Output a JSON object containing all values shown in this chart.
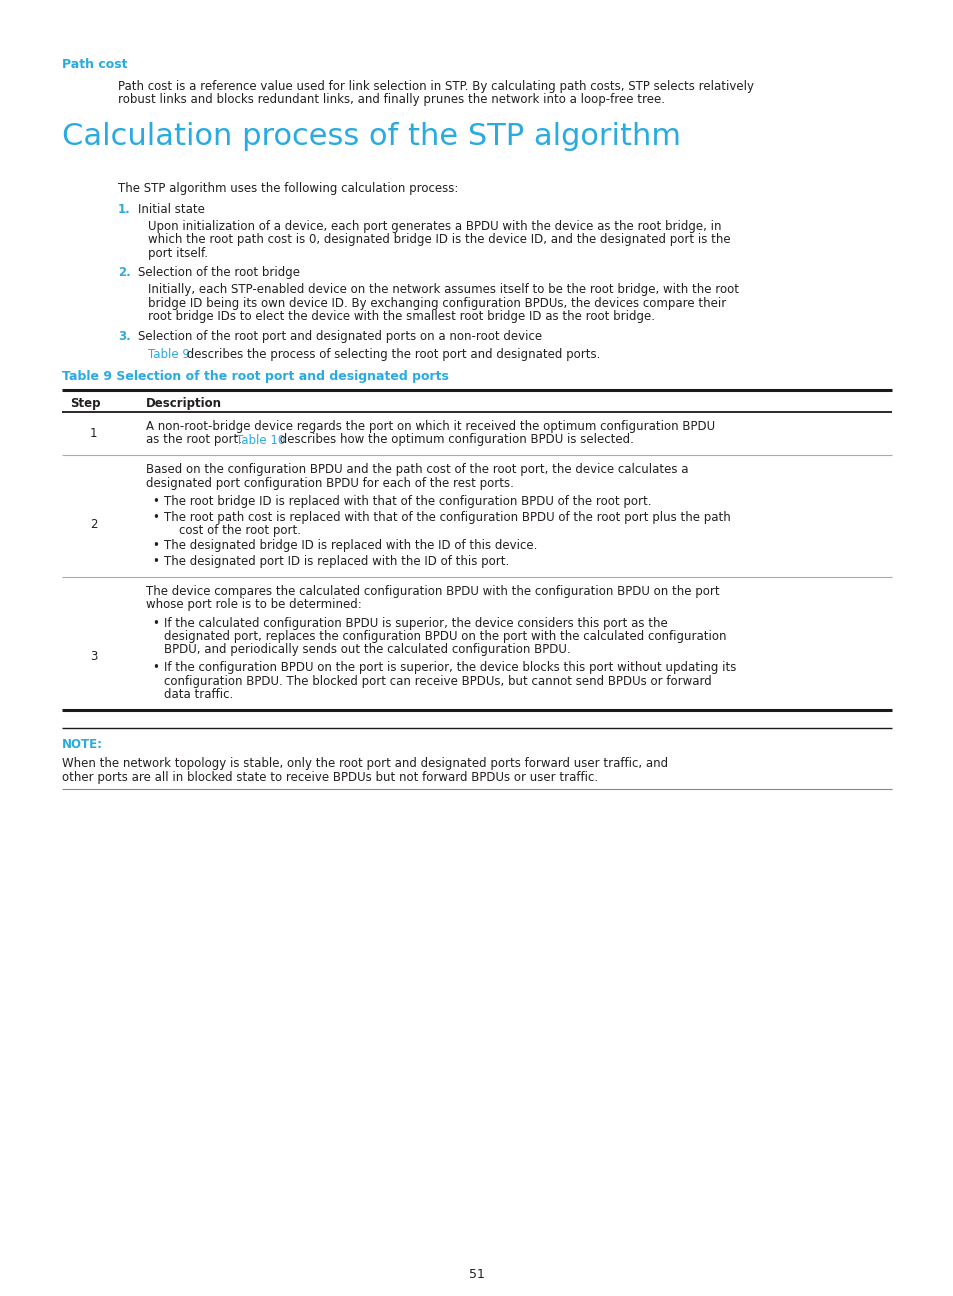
{
  "bg_color": "#ffffff",
  "cyan_color": "#29abe2",
  "black_color": "#231f20",
  "page_number": "51",
  "path_cost_heading": "Path cost",
  "path_cost_body1": "Path cost is a reference value used for link selection in STP. By calculating path costs, STP selects relatively",
  "path_cost_body2": "robust links and blocks redundant links, and finally prunes the network into a loop-free tree.",
  "section_title": "Calculation process of the STP algorithm",
  "section_intro": "The STP algorithm uses the following calculation process:",
  "item1_num": "1.",
  "item1_title": "Initial state",
  "item1_body1": "Upon initialization of a device, each port generates a BPDU with the device as the root bridge, in",
  "item1_body2": "which the root path cost is 0, designated bridge ID is the device ID, and the designated port is the",
  "item1_body3": "port itself.",
  "item2_num": "2.",
  "item2_title": "Selection of the root bridge",
  "item2_body1": "Initially, each STP-enabled device on the network assumes itself to be the root bridge, with the root",
  "item2_body2": "bridge ID being its own device ID. By exchanging configuration BPDUs, the devices compare their",
  "item2_body3": "root bridge IDs to elect the device with the smallest root bridge ID as the root bridge.",
  "item3_num": "3.",
  "item3_title": "Selection of the root port and designated ports on a non-root device",
  "item3_body_pre": "Table 9",
  "item3_body_post": " describes the process of selecting the root port and designated ports.",
  "table_title": "Table 9 Selection of the root port and designated ports",
  "table_col1": "Step",
  "table_col2": "Description",
  "row1_step": "1",
  "row1_line1": "A non-root-bridge device regards the port on which it received the optimum configuration BPDU",
  "row1_line2_pre": "as the root port. ",
  "row1_line2_link": "Table 10",
  "row1_line2_post": " describes how the optimum configuration BPDU is selected.",
  "row2_step": "2",
  "row2_intro1": "Based on the configuration BPDU and the path cost of the root port, the device calculates a",
  "row2_intro2": "designated port configuration BPDU for each of the rest ports.",
  "row2_bullets": [
    "The root bridge ID is replaced with that of the configuration BPDU of the root port.",
    "The root path cost is replaced with that of the configuration BPDU of the root port plus the path\n    cost of the root port.",
    "The designated bridge ID is replaced with the ID of this device.",
    "The designated port ID is replaced with the ID of this port."
  ],
  "row3_step": "3",
  "row3_intro1": "The device compares the calculated configuration BPDU with the configuration BPDU on the port",
  "row3_intro2": "whose port role is to be determined:",
  "row3_bullet1_line1": "If the calculated configuration BPDU is superior, the device considers this port as the",
  "row3_bullet1_line2": "designated port, replaces the configuration BPDU on the port with the calculated configuration",
  "row3_bullet1_line3": "BPDU, and periodically sends out the calculated configuration BPDU.",
  "row3_bullet2_line1": "If the configuration BPDU on the port is superior, the device blocks this port without updating its",
  "row3_bullet2_line2": "configuration BPDU. The blocked port can receive BPDUs, but cannot send BPDUs or forward",
  "row3_bullet2_line3": "data traffic.",
  "note_label": "NOTE:",
  "note_body1": "When the network topology is stable, only the root port and designated ports forward user traffic, and",
  "note_body2": "other ports are all in blocked state to receive BPDUs but not forward BPDUs or user traffic."
}
